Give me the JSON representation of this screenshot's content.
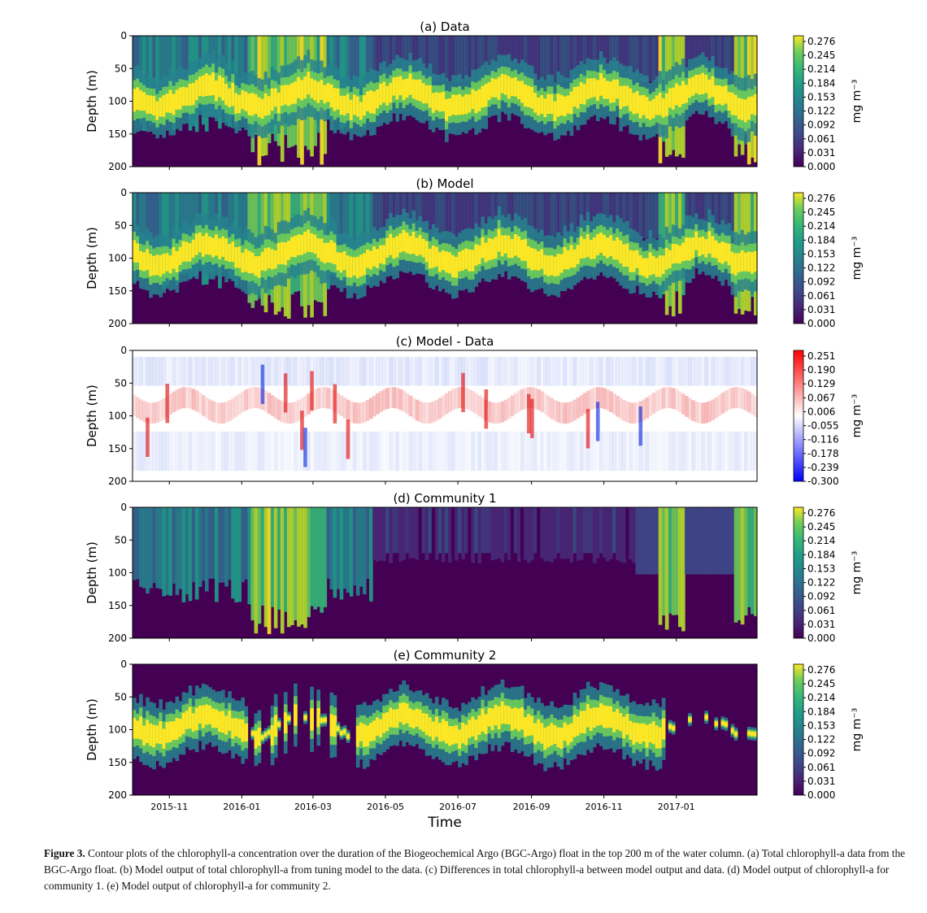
{
  "panels": [
    {
      "title": "(a) Data",
      "type": "viridis",
      "cbar_ticks": [
        "0.276",
        "0.245",
        "0.214",
        "0.184",
        "0.153",
        "0.122",
        "0.092",
        "0.061",
        "0.031",
        "0.000"
      ],
      "cbar_label": "mg m⁻³"
    },
    {
      "title": "(b) Model",
      "type": "viridis",
      "cbar_ticks": [
        "0.276",
        "0.245",
        "0.214",
        "0.184",
        "0.153",
        "0.122",
        "0.092",
        "0.061",
        "0.031",
        "0.000"
      ],
      "cbar_label": "mg m⁻³"
    },
    {
      "title": "(c) Model - Data",
      "type": "diverging",
      "cbar_ticks": [
        "0.251",
        "0.190",
        "0.129",
        "0.067",
        "0.006",
        "-0.055",
        "-0.116",
        "-0.178",
        "-0.239",
        "-0.300"
      ],
      "cbar_label": "mg m⁻³"
    },
    {
      "title": "(d) Community 1",
      "type": "viridis",
      "cbar_ticks": [
        "0.276",
        "0.245",
        "0.214",
        "0.184",
        "0.153",
        "0.122",
        "0.092",
        "0.061",
        "0.031",
        "0.000"
      ],
      "cbar_label": "mg m⁻³"
    },
    {
      "title": "(e) Community 2",
      "type": "viridis",
      "cbar_ticks": [
        "0.276",
        "0.245",
        "0.214",
        "0.184",
        "0.153",
        "0.122",
        "0.092",
        "0.061",
        "0.031",
        "0.000"
      ],
      "cbar_label": "mg m⁻³"
    }
  ],
  "ylabel": "Depth (m)",
  "ytick_labels": [
    "0",
    "50",
    "100",
    "150",
    "200"
  ],
  "xlabel": "Time",
  "xtick_labels": [
    "2015-11",
    "2016-01",
    "2016-03",
    "2016-05",
    "2016-07",
    "2016-09",
    "2016-11",
    "2017-01"
  ],
  "chart_data": {
    "type": "heatmap",
    "x_unit": "date",
    "x_range": [
      "2015-10-01",
      "2017-03-10"
    ],
    "y_range": [
      200,
      0
    ],
    "ylabel": "Depth (m)",
    "xlabel": "Time",
    "colorscale_viridis": {
      "min": 0.0,
      "max": 0.276
    },
    "colorscale_diverging": {
      "min": -0.3,
      "max": 0.251
    }
  },
  "caption": {
    "label": "Figure 3.",
    "text": " Contour plots of the chlorophyll-a concentration over the duration of the Biogeochemical Argo (BGC-Argo) float in the top 200 m of the water column. (a) Total chlorophyll-a data from the BGC-Argo float. (b) Model output of total chlorophyll-a from tuning model to the data. (c) Differences in total chlorophyll-a between model output and data. (d) Model output of chlorophyll-a for community 1. (e) Model output of chlorophyll-a for community 2."
  }
}
